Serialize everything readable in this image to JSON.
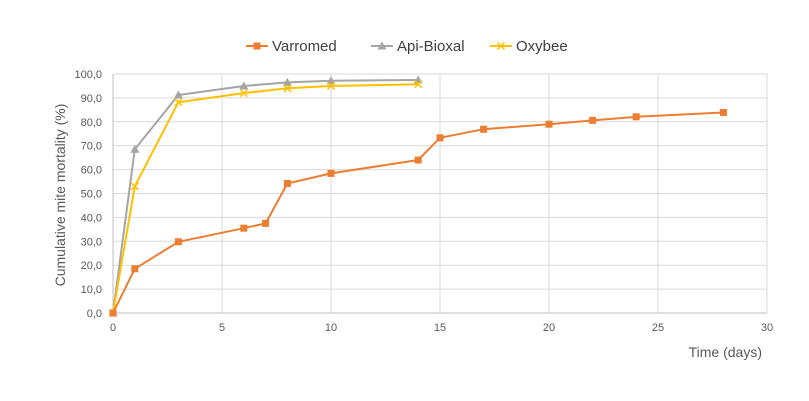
{
  "chart_data": {
    "type": "line",
    "title": "",
    "xlabel": "Time (days)",
    "ylabel": "Cumulative mite mortality (%)",
    "xlim": [
      0,
      30
    ],
    "ylim": [
      0,
      100
    ],
    "x_ticks": [
      0,
      5,
      10,
      15,
      20,
      25,
      30
    ],
    "y_ticks": [
      "0,0",
      "10,0",
      "20,0",
      "30,0",
      "40,0",
      "50,0",
      "60,0",
      "70,0",
      "80,0",
      "90,0",
      "100,0"
    ],
    "grid": "vertical and horizontal",
    "legend_position": "top",
    "series": [
      {
        "name": "Varromed",
        "color": "#ED7D31",
        "marker": "square",
        "x": [
          0,
          1,
          3,
          6,
          7,
          8,
          10,
          14,
          15,
          17,
          20,
          22,
          24,
          28
        ],
        "y": [
          0,
          18.5,
          29.8,
          35.5,
          37.5,
          54.2,
          58.4,
          64.0,
          73.3,
          76.9,
          79.0,
          80.6,
          82.1,
          83.9
        ]
      },
      {
        "name": "Api-Bioxal",
        "color": "#A5A5A5",
        "marker": "triangle",
        "x": [
          0,
          1,
          3,
          6,
          8,
          10,
          14
        ],
        "y": [
          0,
          68.5,
          91.2,
          95.0,
          96.5,
          97.2,
          97.5
        ]
      },
      {
        "name": "Oxybee",
        "color": "#FFC000",
        "marker": "x",
        "x": [
          0,
          1,
          3,
          6,
          8,
          10,
          14
        ],
        "y": [
          0,
          53.0,
          88.2,
          92.0,
          94.0,
          95.0,
          95.7
        ]
      }
    ]
  }
}
